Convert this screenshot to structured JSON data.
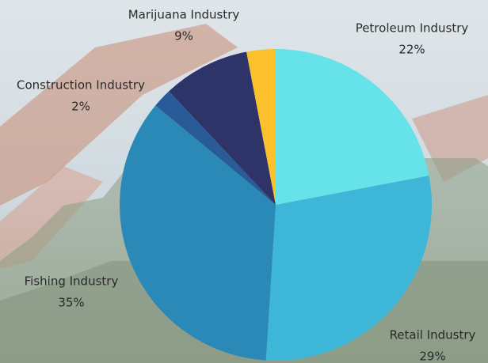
{
  "chart_data": {
    "type": "pie",
    "categories": [
      "Petroleum Industry",
      "Retail Industry",
      "Fishing Industry",
      "Construction Industry",
      "Marijuana Industry",
      null
    ],
    "values": [
      22,
      29,
      35,
      2,
      9,
      3
    ],
    "value_labels": [
      "22%",
      "29%",
      "35%",
      "2%",
      "9%",
      null
    ],
    "colors": [
      "#66e3e8",
      "#3db6d8",
      "#2b89b8",
      "#2a5b99",
      "#2f3468",
      "#fbc12c"
    ]
  }
}
